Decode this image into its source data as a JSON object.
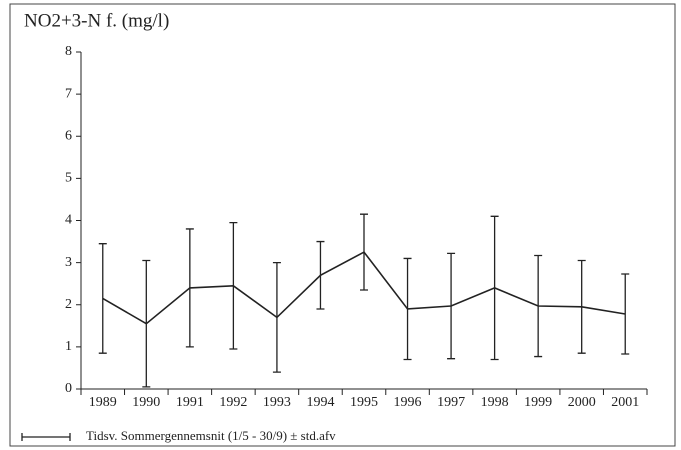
{
  "chart_data": {
    "type": "line",
    "title": "NO2+3-N f. (mg/l)",
    "categories": [
      "1989",
      "1990",
      "1991",
      "1992",
      "1993",
      "1994",
      "1995",
      "1996",
      "1997",
      "1998",
      "1999",
      "2000",
      "2001"
    ],
    "series": [
      {
        "name": "Tidsv. Sommergennemsnit (1/5 - 30/9) ± std.afv",
        "color": "#222222",
        "values": [
          2.15,
          1.55,
          2.4,
          2.45,
          1.7,
          2.7,
          3.25,
          1.9,
          1.97,
          2.4,
          1.97,
          1.95,
          1.78
        ],
        "errors": [
          1.3,
          1.5,
          1.4,
          1.5,
          1.3,
          0.8,
          0.9,
          1.2,
          1.25,
          1.7,
          1.2,
          1.1,
          0.95
        ]
      }
    ],
    "ylim": [
      0,
      8
    ],
    "yticks": [
      0,
      1,
      2,
      3,
      4,
      5,
      6,
      7,
      8
    ]
  }
}
